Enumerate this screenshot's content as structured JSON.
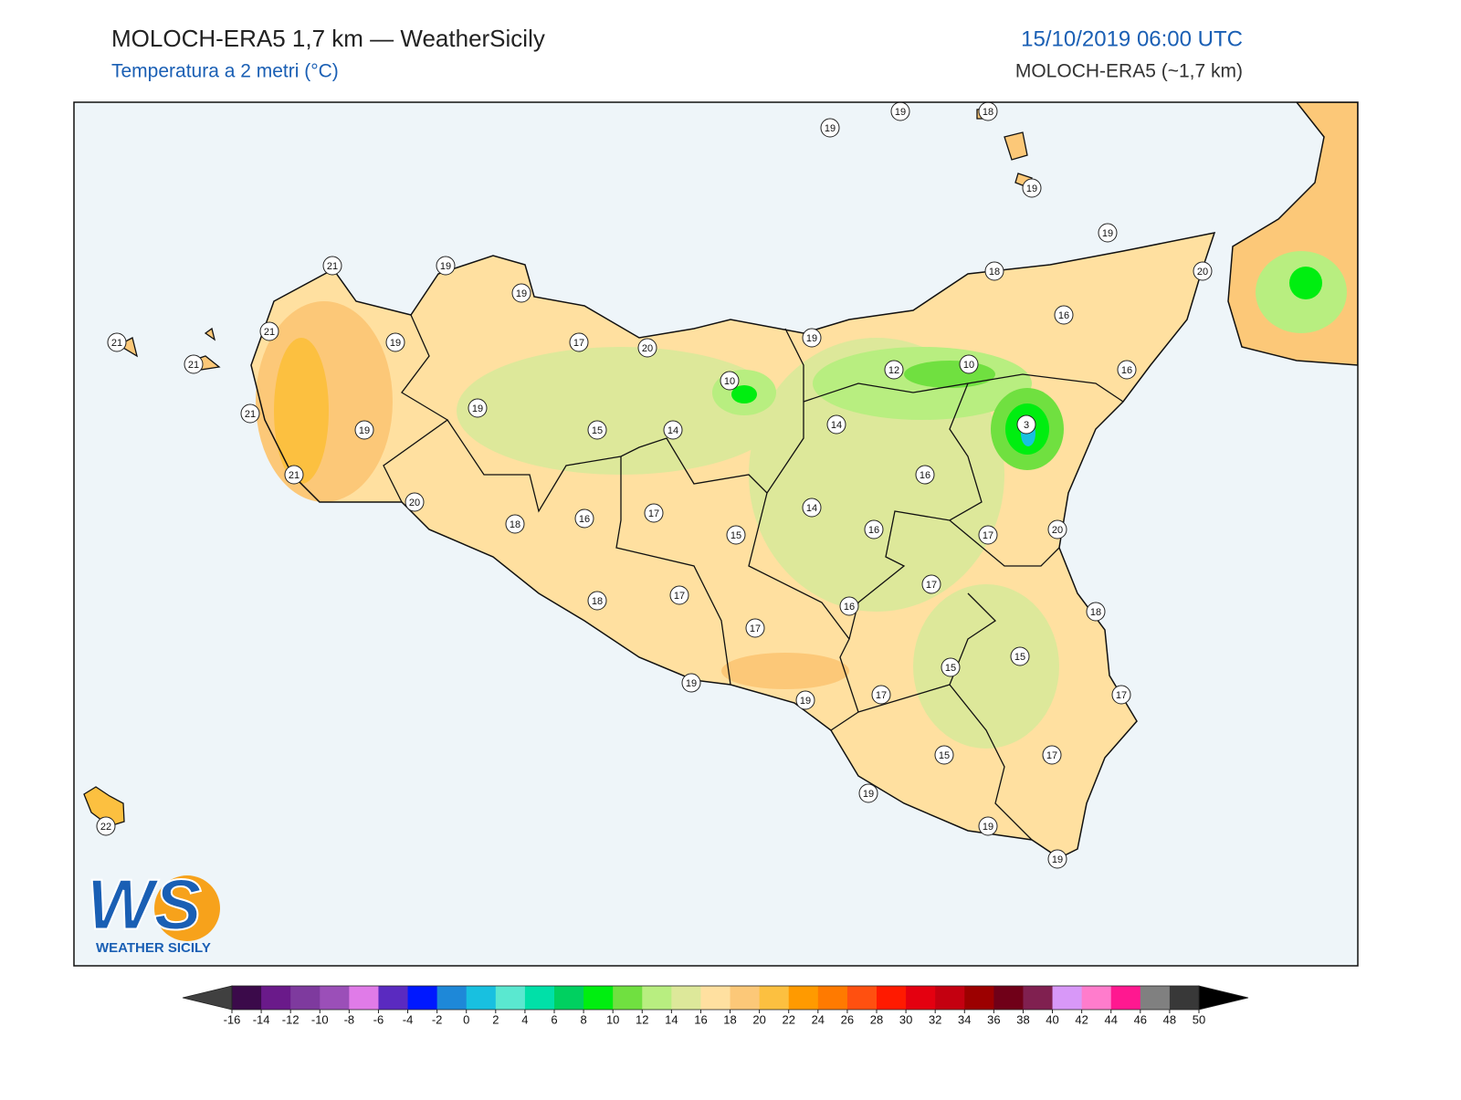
{
  "header": {
    "title": "MOLOCH-ERA5 1,7 km — WeatherSicily",
    "subtitle": "Temperatura a 2 metri (°C)",
    "datetime": "15/10/2019 06:00 UTC",
    "model": "MOLOCH-ERA5 (~1,7 km)"
  },
  "stations": [
    19,
    19,
    18,
    19,
    19,
    20,
    18,
    16,
    16,
    19,
    12,
    10,
    3,
    14,
    16,
    14,
    16,
    17,
    20,
    17,
    16,
    18,
    15,
    15,
    17,
    17,
    19,
    17,
    15,
    19,
    19,
    19,
    21,
    19,
    19,
    21,
    19,
    21,
    21,
    17,
    20,
    10,
    19,
    21,
    19,
    15,
    14,
    21,
    20,
    18,
    16,
    17,
    15,
    18,
    17,
    17,
    19,
    22
  ],
  "logo": {
    "mark": "WS",
    "name": "WEATHER SICILY"
  },
  "colorbar": {
    "ticks": [
      -16,
      -14,
      -12,
      -10,
      -8,
      -6,
      -4,
      -2,
      0,
      2,
      4,
      6,
      8,
      10,
      12,
      14,
      16,
      18,
      20,
      22,
      24,
      26,
      28,
      30,
      32,
      34,
      36,
      38,
      40,
      42,
      44,
      46,
      48,
      50
    ],
    "colors": [
      "#3b0a4a",
      "#6a1a8a",
      "#7e3a9e",
      "#9b4fb8",
      "#e07be8",
      "#5a2ac0",
      "#0018ff",
      "#1e88d8",
      "#18c0e0",
      "#5ae8d0",
      "#00e0a8",
      "#00d060",
      "#00ee10",
      "#70e040",
      "#b8ee80",
      "#dde89a",
      "#ffe0a0",
      "#fcc878",
      "#fcc040",
      "#ff9a00",
      "#ff7a00",
      "#ff5010",
      "#ff1a00",
      "#e40010",
      "#c40010",
      "#9c0000",
      "#700018",
      "#802050",
      "#d898f8",
      "#ff7ccc",
      "#ff1890",
      "#808080",
      "#383838"
    ],
    "under": "#404040",
    "over": "#000000"
  }
}
